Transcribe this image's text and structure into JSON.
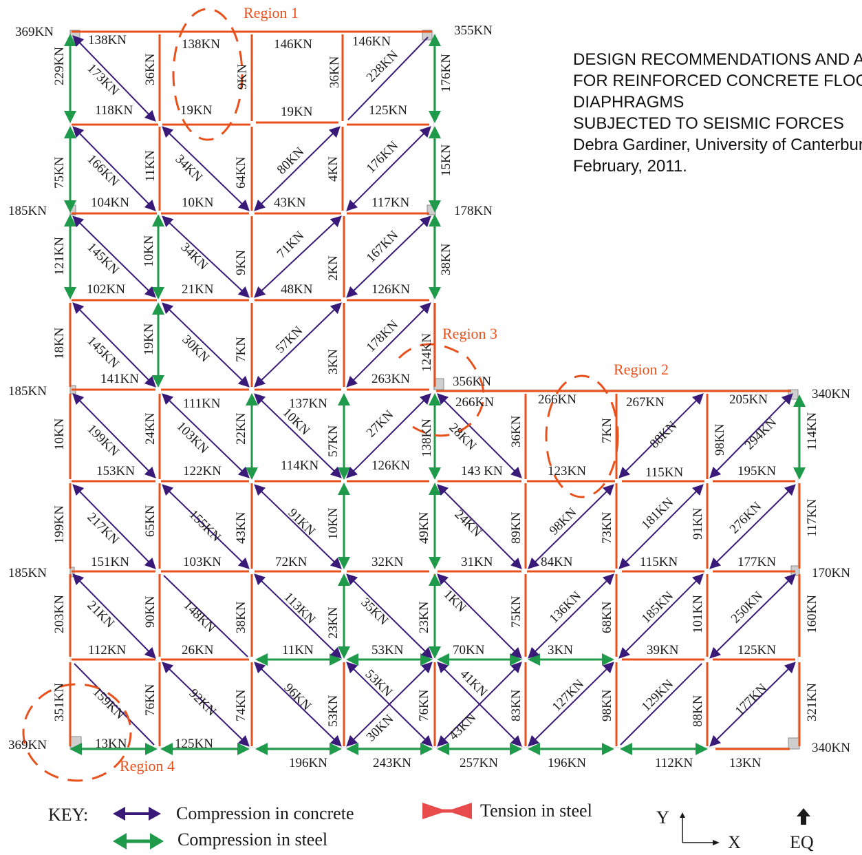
{
  "colors": {
    "compression_concrete": "#3a1a78",
    "tension_steel": "#e8501c",
    "compression_steel": "#1f9a4a",
    "region_outline": "#e8501c"
  },
  "info": {
    "lines": [
      "DESIGN RECOMMENDATIONS AND ANALYSIS",
      "FOR REINFORCED CONCRETE FLOOR",
      "DIAPHRAGMS",
      "SUBJECTED TO SEISMIC FORCES",
      "Debra Gardiner, University of Canterbury,",
      "February, 2011."
    ]
  },
  "regions": [
    "Region 1",
    "Region 2",
    "Region 3",
    "Region 4"
  ],
  "key": {
    "title": "KEY:",
    "compression_concrete": "Compression in concrete",
    "compression_steel": "Compression in steel",
    "tension_steel": "Tension in steel"
  },
  "axes": {
    "y": "Y",
    "x": "X",
    "eq": "EQ"
  },
  "support_loads": {
    "l1": "369KN",
    "r1": "355KN",
    "l2": "185KN",
    "r2": "178KN",
    "l3": "185KN",
    "r3": "356KN",
    "r3b": "340KN",
    "l4": "185KN",
    "r4": "170KN",
    "l5": "369KN",
    "r5": "340KN"
  },
  "member_forces": {
    "t1": "138KN",
    "t2": "138KN",
    "t3": "146KN",
    "t4": "146KN",
    "c01": "229KN",
    "c02": "36KN",
    "c03": "9KN",
    "c04": "36KN",
    "c05": "176KN",
    "d01": "173KN",
    "d02": "228KN",
    "h1a": "118KN",
    "h1b": "19KN",
    "h1c": "19KN",
    "h1d": "125KN",
    "c11": "75KN",
    "c12": "11KN",
    "c13": "64KN",
    "c14": "4KN",
    "c15": "15KN",
    "d11": "166KN",
    "d12": "34KN",
    "d13": "80KN",
    "d14": "176KN",
    "h2a": "104KN",
    "h2b": "10KN",
    "h2c": "43KN",
    "h2d": "117KN",
    "c21": "121KN",
    "c22": "10KN",
    "c23": "9KN",
    "c24": "2KN",
    "c25": "38KN",
    "d21": "145KN",
    "d22": "34KN",
    "d23": "71KN",
    "d24": "167KN",
    "h3a": "102KN",
    "h3b": "21KN",
    "h3c": "48KN",
    "h3d": "126KN",
    "c31": "18KN",
    "c32": "19KN",
    "c33": "7KN",
    "c34": "3KN",
    "c35": "124KN",
    "d31": "145KN",
    "d32": "30KN",
    "d33": "57KN",
    "d34": "178KN",
    "h4a": "141KN",
    "h4d": "263KN",
    "h4b": "111KN",
    "h4c": "137KN",
    "h4e": "266KN",
    "h4f": "266KN",
    "h4g": "267KN",
    "h4h": "205KN",
    "c41": "10KN",
    "c42": "24KN",
    "c43": "22KN",
    "c44": "57KN",
    "c45": "138KN",
    "c46": "36KN",
    "c47": "7KN",
    "c48": "98KN",
    "c49": "114KN",
    "d41": "199KN",
    "d42": "103KN",
    "d43": "10KN",
    "d44": "27KN",
    "d45": "28KN",
    "d46": "88KN",
    "d47": "294KN",
    "h5a": "153KN",
    "h5b": "122KN",
    "h5c": "114KN",
    "h5d": "126KN",
    "h5e": "143 KN",
    "h5f": "123KN",
    "h5g": "115KN",
    "h5h": "195KN",
    "c51": "199KN",
    "c52": "65KN",
    "c53": "43KN",
    "c54": "10KN",
    "c55": "49KN",
    "c56": "89KN",
    "c57": "73KN",
    "c58": "91KN",
    "c59": "117KN",
    "d51": "217KN",
    "d52": "155KN",
    "d53": "91KN",
    "d54": "24KN",
    "d55": "98KN",
    "d56": "181KN",
    "d57": "276KN",
    "h6a": "151KN",
    "h6b": "103KN",
    "h6c": "72KN",
    "h6d": "32KN",
    "h6e": "31KN",
    "h6f": "84KN",
    "h6g": "115KN",
    "h6h": "177KN",
    "c61": "203KN",
    "c62": "90KN",
    "c63": "38KN",
    "c64": "23KN",
    "c65": "23KN",
    "c66": "75KN",
    "c67": "68KN",
    "c68": "101KN",
    "c69": "160KN",
    "d61": "21KN",
    "d62": "148KN",
    "d63": "113KN",
    "d64": "35KN",
    "d65": "1KN",
    "d66": "136KN",
    "d67": "185KN",
    "d68": "250KN",
    "h7a": "112KN",
    "h7b": "26KN",
    "h7c": "11KN",
    "h7d": "53KN",
    "h7e": "70KN",
    "h7f": "3KN",
    "h7g": "39KN",
    "h7h": "125KN",
    "c71": "351KN",
    "c72": "76KN",
    "c73": "74KN",
    "c74": "53KN",
    "c75": "76KN",
    "c76": "83KN",
    "c77": "98KN",
    "c78": "88KN",
    "c79": "321KN",
    "d71": "159KN",
    "d72": "92KN",
    "d73": "96KN",
    "d74": "53KN",
    "d75": "30KN",
    "d76": "41KN",
    "d77": "43KN",
    "d78": "127KN",
    "d79": "129KN",
    "d80": "177KN",
    "b1": "13KN",
    "b2": "125KN",
    "b3": "196KN",
    "b4": "243KN",
    "b5": "257KN",
    "b6": "196KN",
    "b7": "112KN",
    "b8": "13KN"
  }
}
